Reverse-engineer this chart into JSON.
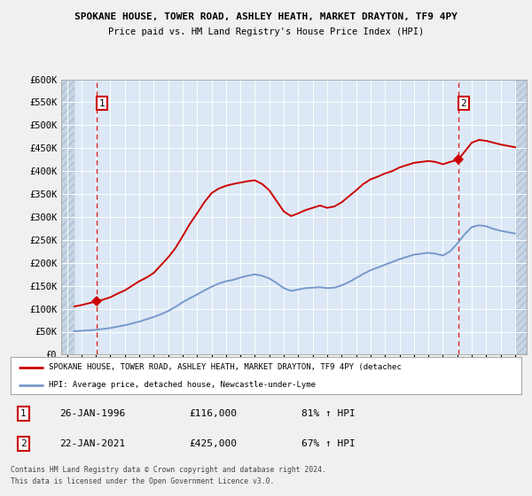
{
  "title": "SPOKANE HOUSE, TOWER ROAD, ASHLEY HEATH, MARKET DRAYTON, TF9 4PY",
  "subtitle": "Price paid vs. HM Land Registry's House Price Index (HPI)",
  "bg_color": "#f0f0f0",
  "plot_bg_color": "#dce8f5",
  "red_line_color": "#cc0000",
  "blue_line_color": "#7799cc",
  "grid_color": "#ffffff",
  "ylim": [
    0,
    600000
  ],
  "yticks": [
    0,
    50000,
    100000,
    150000,
    200000,
    250000,
    300000,
    350000,
    400000,
    450000,
    500000,
    550000,
    600000
  ],
  "ytick_labels": [
    "£0",
    "£50K",
    "£100K",
    "£150K",
    "£200K",
    "£250K",
    "£300K",
    "£350K",
    "£400K",
    "£450K",
    "£500K",
    "£550K",
    "£600K"
  ],
  "xlim_start": 1993.6,
  "xlim_end": 2025.8,
  "hatch_left_end": 1994.5,
  "hatch_right_start": 2025.0,
  "transaction1_year": 1996.07,
  "transaction1_price": 116000,
  "transaction2_year": 2021.07,
  "transaction2_price": 425000,
  "legend_line1": "SPOKANE HOUSE, TOWER ROAD, ASHLEY HEATH, MARKET DRAYTON, TF9 4PY (detachec",
  "legend_line2": "HPI: Average price, detached house, Newcastle-under-Lyme",
  "table_row1_label": "1",
  "table_row1_date": "26-JAN-1996",
  "table_row1_price": "£116,000",
  "table_row1_hpi": "81% ↑ HPI",
  "table_row2_label": "2",
  "table_row2_date": "22-JAN-2021",
  "table_row2_price": "£425,000",
  "table_row2_hpi": "67% ↑ HPI",
  "footer": "Contains HM Land Registry data © Crown copyright and database right 2024.\nThis data is licensed under the Open Government Licence v3.0.",
  "red_x": [
    1994.5,
    1995.0,
    1995.5,
    1996.07,
    1996.5,
    1997.0,
    1997.5,
    1998.0,
    1998.5,
    1999.0,
    1999.5,
    2000.0,
    2000.5,
    2001.0,
    2001.5,
    2002.0,
    2002.5,
    2003.0,
    2003.5,
    2004.0,
    2004.5,
    2005.0,
    2005.5,
    2006.0,
    2006.5,
    2007.0,
    2007.5,
    2008.0,
    2008.5,
    2009.0,
    2009.5,
    2010.0,
    2010.5,
    2011.0,
    2011.5,
    2012.0,
    2012.5,
    2013.0,
    2013.5,
    2014.0,
    2014.5,
    2015.0,
    2015.5,
    2016.0,
    2016.5,
    2017.0,
    2017.5,
    2018.0,
    2018.5,
    2019.0,
    2019.5,
    2020.0,
    2020.5,
    2021.07,
    2021.5,
    2022.0,
    2022.5,
    2023.0,
    2023.5,
    2024.0,
    2024.5,
    2025.0
  ],
  "red_y": [
    105000,
    108000,
    112000,
    116000,
    120000,
    125000,
    133000,
    140000,
    150000,
    160000,
    168000,
    178000,
    195000,
    212000,
    232000,
    258000,
    285000,
    308000,
    332000,
    352000,
    362000,
    368000,
    372000,
    375000,
    378000,
    380000,
    372000,
    358000,
    335000,
    312000,
    302000,
    308000,
    315000,
    320000,
    325000,
    320000,
    323000,
    332000,
    345000,
    358000,
    372000,
    382000,
    388000,
    395000,
    400000,
    408000,
    413000,
    418000,
    420000,
    422000,
    420000,
    415000,
    420000,
    425000,
    442000,
    462000,
    468000,
    466000,
    462000,
    458000,
    455000,
    452000
  ],
  "blue_x": [
    1994.5,
    1995.0,
    1995.5,
    1996.0,
    1996.5,
    1997.0,
    1997.5,
    1998.0,
    1998.5,
    1999.0,
    1999.5,
    2000.0,
    2000.5,
    2001.0,
    2001.5,
    2002.0,
    2002.5,
    2003.0,
    2003.5,
    2004.0,
    2004.5,
    2005.0,
    2005.5,
    2006.0,
    2006.5,
    2007.0,
    2007.5,
    2008.0,
    2008.5,
    2009.0,
    2009.5,
    2010.0,
    2010.5,
    2011.0,
    2011.5,
    2012.0,
    2012.5,
    2013.0,
    2013.5,
    2014.0,
    2014.5,
    2015.0,
    2015.5,
    2016.0,
    2016.5,
    2017.0,
    2017.5,
    2018.0,
    2018.5,
    2019.0,
    2019.5,
    2020.0,
    2020.5,
    2021.0,
    2021.5,
    2022.0,
    2022.5,
    2023.0,
    2023.5,
    2024.0,
    2024.5,
    2025.0
  ],
  "blue_y": [
    51000,
    52000,
    53000,
    54000,
    56000,
    58000,
    61000,
    64000,
    68000,
    72000,
    77000,
    82000,
    88000,
    95000,
    104000,
    114000,
    123000,
    131000,
    140000,
    148000,
    155000,
    160000,
    163000,
    168000,
    172000,
    175000,
    172000,
    166000,
    156000,
    145000,
    139000,
    142000,
    145000,
    146000,
    147000,
    145000,
    146000,
    151000,
    158000,
    167000,
    176000,
    184000,
    190000,
    196000,
    202000,
    208000,
    213000,
    218000,
    220000,
    222000,
    220000,
    216000,
    225000,
    242000,
    262000,
    278000,
    282000,
    280000,
    274000,
    270000,
    267000,
    264000
  ]
}
